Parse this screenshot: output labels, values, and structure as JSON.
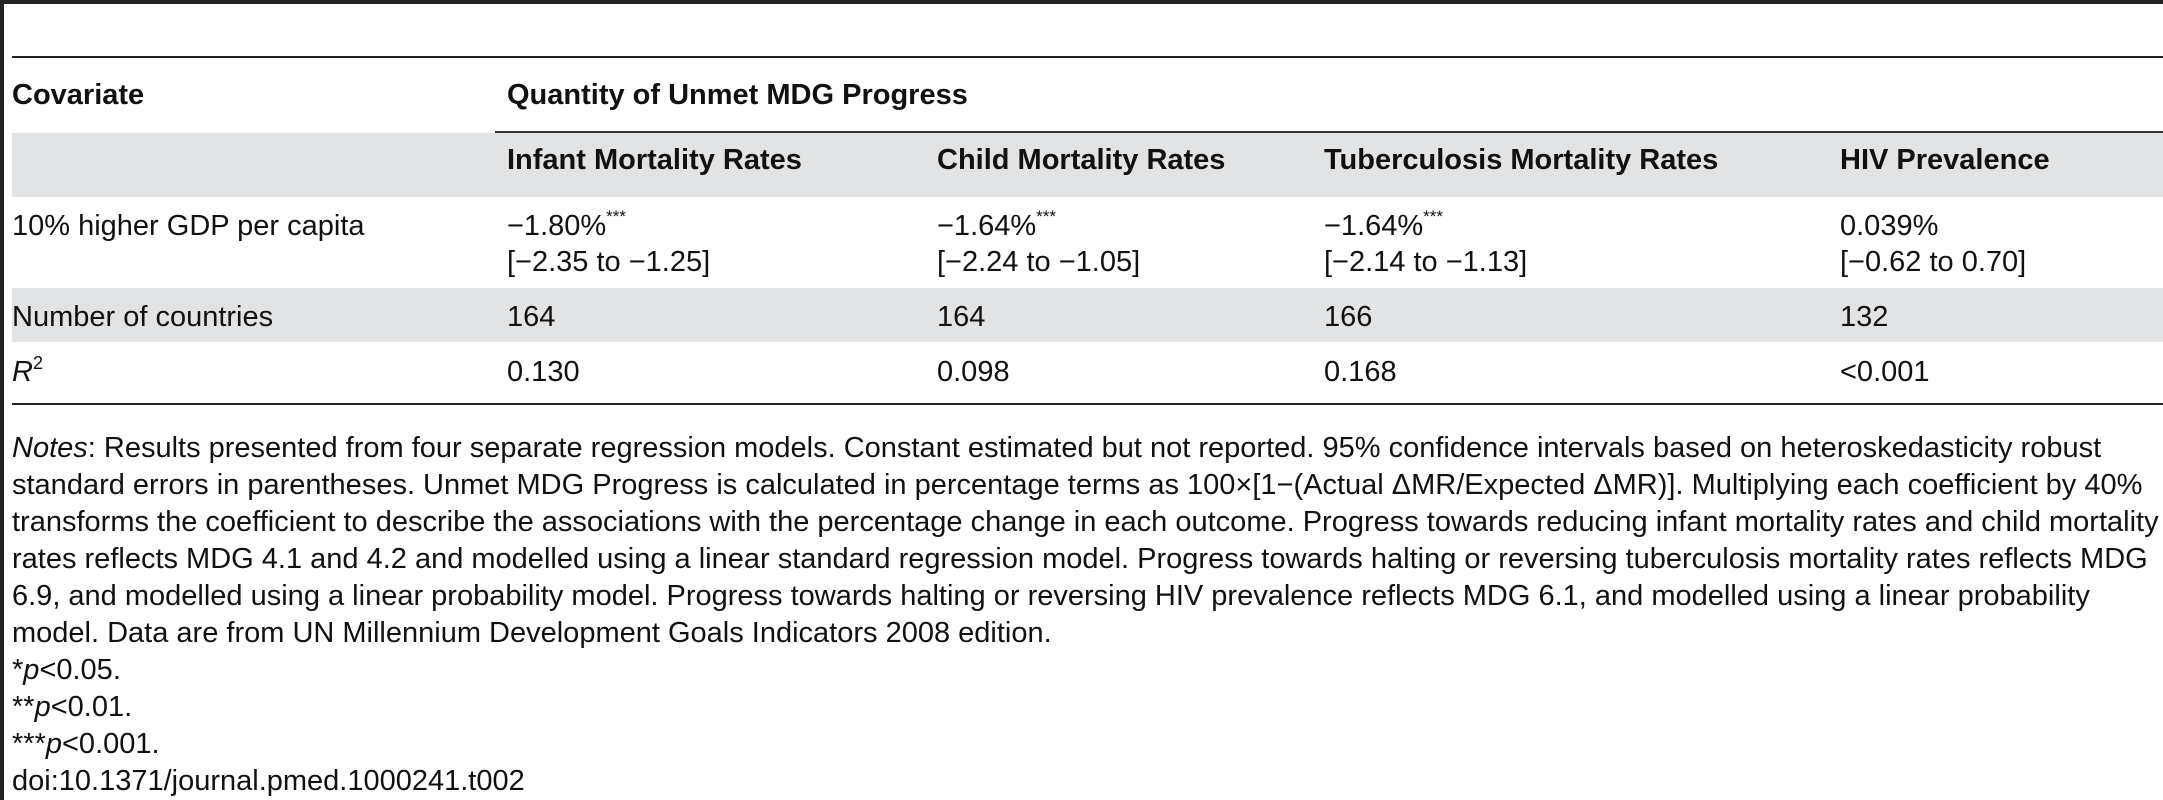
{
  "table": {
    "covariate_header": "Covariate",
    "group_header": "Quantity of Unmet MDG Progress",
    "columns": [
      "Infant Mortality Rates",
      "Child Mortality Rates",
      "Tuberculosis Mortality Rates",
      "HIV Prevalence"
    ],
    "rows": [
      {
        "label": "10% higher GDP per capita",
        "cells": [
          {
            "value": "−1.80%",
            "stars": "***",
            "ci": "[−2.35 to −1.25]"
          },
          {
            "value": "−1.64%",
            "stars": "***",
            "ci": "[−2.24 to −1.05]"
          },
          {
            "value": "−1.64%",
            "stars": "***",
            "ci": "[−2.14 to −1.13]"
          },
          {
            "value": "0.039%",
            "stars": "",
            "ci": "[−0.62 to 0.70]"
          }
        ]
      },
      {
        "label": "Number of countries",
        "cells": [
          "164",
          "164",
          "166",
          "132"
        ]
      },
      {
        "label_base": "R",
        "label_sup": "2",
        "cells": [
          "0.130",
          "0.098",
          "0.168",
          "<0.001"
        ]
      }
    ]
  },
  "notes": {
    "notes_label": "Notes",
    "notes_text": ": Results presented from four separate regression models. Constant estimated but not reported. 95% confidence intervals based on heteroskedasticity robust standard errors in parentheses. Unmet MDG Progress is calculated in percentage terms as 100×[1−(Actual ΔMR/Expected ΔMR)]. Multiplying each coefficient by 40% transforms the coefficient to describe the associations with the percentage change in each outcome. Progress towards reducing infant mortality rates and child mortality rates reflects MDG 4.1 and 4.2 and modelled using a linear standard regression model. Progress towards halting or reversing tuberculosis mortality rates reflects MDG 6.9, and modelled using a linear probability model. Progress towards halting or reversing HIV prevalence reflects MDG 6.1, and modelled using a linear probability model. Data are from UN Millennium Development Goals Indicators 2008 edition.",
    "sig": [
      {
        "stars": "*",
        "p": "p",
        "rest": "<0.05."
      },
      {
        "stars": "**",
        "p": "p",
        "rest": "<0.01."
      },
      {
        "stars": "***",
        "p": "p",
        "rest": "<0.001."
      }
    ],
    "doi": "doi:10.1371/journal.pmed.1000241.t002"
  },
  "colors": {
    "band": "#e2e3e4",
    "rule": "#222222"
  }
}
